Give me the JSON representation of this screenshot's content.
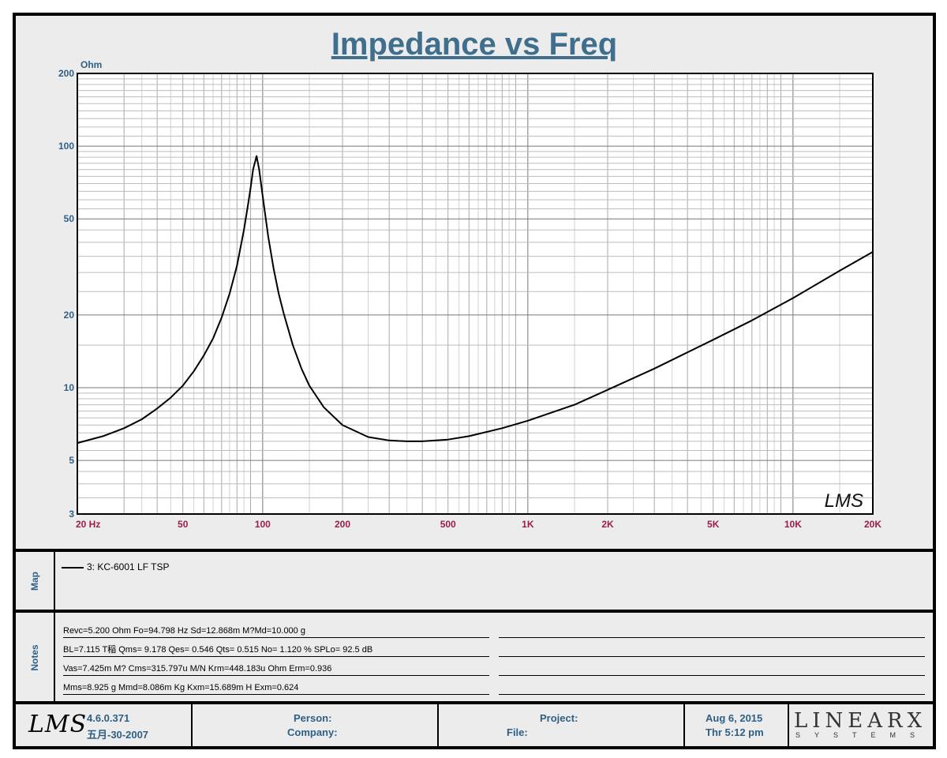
{
  "chart_data": {
    "type": "line",
    "title": "Impedance vs Freq",
    "ylabel": "Ohm",
    "xscale": "log",
    "yscale": "log",
    "xlim": [
      20,
      20000
    ],
    "ylim": [
      3,
      200
    ],
    "grid": true,
    "x_ticks": [
      {
        "v": 20,
        "label": "20  Hz"
      },
      {
        "v": 50,
        "label": "50"
      },
      {
        "v": 100,
        "label": "100"
      },
      {
        "v": 200,
        "label": "200"
      },
      {
        "v": 500,
        "label": "500"
      },
      {
        "v": 1000,
        "label": "1K"
      },
      {
        "v": 2000,
        "label": "2K"
      },
      {
        "v": 5000,
        "label": "5K"
      },
      {
        "v": 10000,
        "label": "10K"
      },
      {
        "v": 20000,
        "label": "20K"
      }
    ],
    "y_ticks": [
      {
        "v": 3,
        "label": "3"
      },
      {
        "v": 5,
        "label": "5"
      },
      {
        "v": 10,
        "label": "10"
      },
      {
        "v": 20,
        "label": "20"
      },
      {
        "v": 50,
        "label": "50"
      },
      {
        "v": 100,
        "label": "100"
      },
      {
        "v": 200,
        "label": "200"
      }
    ],
    "series": [
      {
        "name": "3: KC-6001 LF TSP",
        "color": "#000000",
        "x": [
          20,
          25,
          30,
          35,
          40,
          45,
          50,
          55,
          60,
          65,
          70,
          75,
          80,
          85,
          88,
          90,
          92,
          94.8,
          97,
          100,
          105,
          110,
          115,
          120,
          130,
          140,
          150,
          170,
          200,
          250,
          300,
          350,
          400,
          500,
          600,
          800,
          1000,
          1500,
          2000,
          3000,
          5000,
          7000,
          10000,
          15000,
          20000
        ],
        "y": [
          5.9,
          6.3,
          6.8,
          7.4,
          8.2,
          9.1,
          10.2,
          11.7,
          13.6,
          16.0,
          19.5,
          24.5,
          32,
          45,
          57,
          67,
          80,
          91,
          80,
          62,
          42,
          31,
          24.5,
          20.3,
          15.0,
          12.0,
          10.2,
          8.3,
          7.0,
          6.25,
          6.05,
          6.0,
          6.0,
          6.1,
          6.3,
          6.8,
          7.3,
          8.5,
          9.8,
          12.0,
          15.8,
          19.0,
          23.5,
          30.5,
          36.5
        ]
      }
    ],
    "watermark": "LMS"
  },
  "legend": {
    "map_label": "Map",
    "series_label": "3: KC-6001 LF TSP"
  },
  "notes": {
    "label": "Notes",
    "rows": [
      "Revc=5.200 Ohm  Fo=94.798 Hz  Sd=12.868m M?Md=10.000 g",
      "BL=7.115 T稲  Qms= 9.178  Qes= 0.546  Qts= 0.515  No= 1.120 %  SPLo= 92.5 dB",
      "Vas=7.425m M? Cms=315.797u M/N  Krm=448.183u Ohm  Erm=0.936",
      "Mms=8.925 g  Mmd=8.086m Kg  Kxm=15.689m H  Exm=0.624"
    ]
  },
  "footer": {
    "logo": "LMS",
    "version": "4.6.0.371",
    "build_date": "五月-30-2007",
    "person_label": "Person:",
    "company_label": "Company:",
    "project_label": "Project:",
    "file_label": "File:",
    "date": "Aug  6, 2015",
    "time": "Thr  5:12 pm",
    "brand": "LINEARX",
    "brand_sub": "SYSTEMS"
  }
}
